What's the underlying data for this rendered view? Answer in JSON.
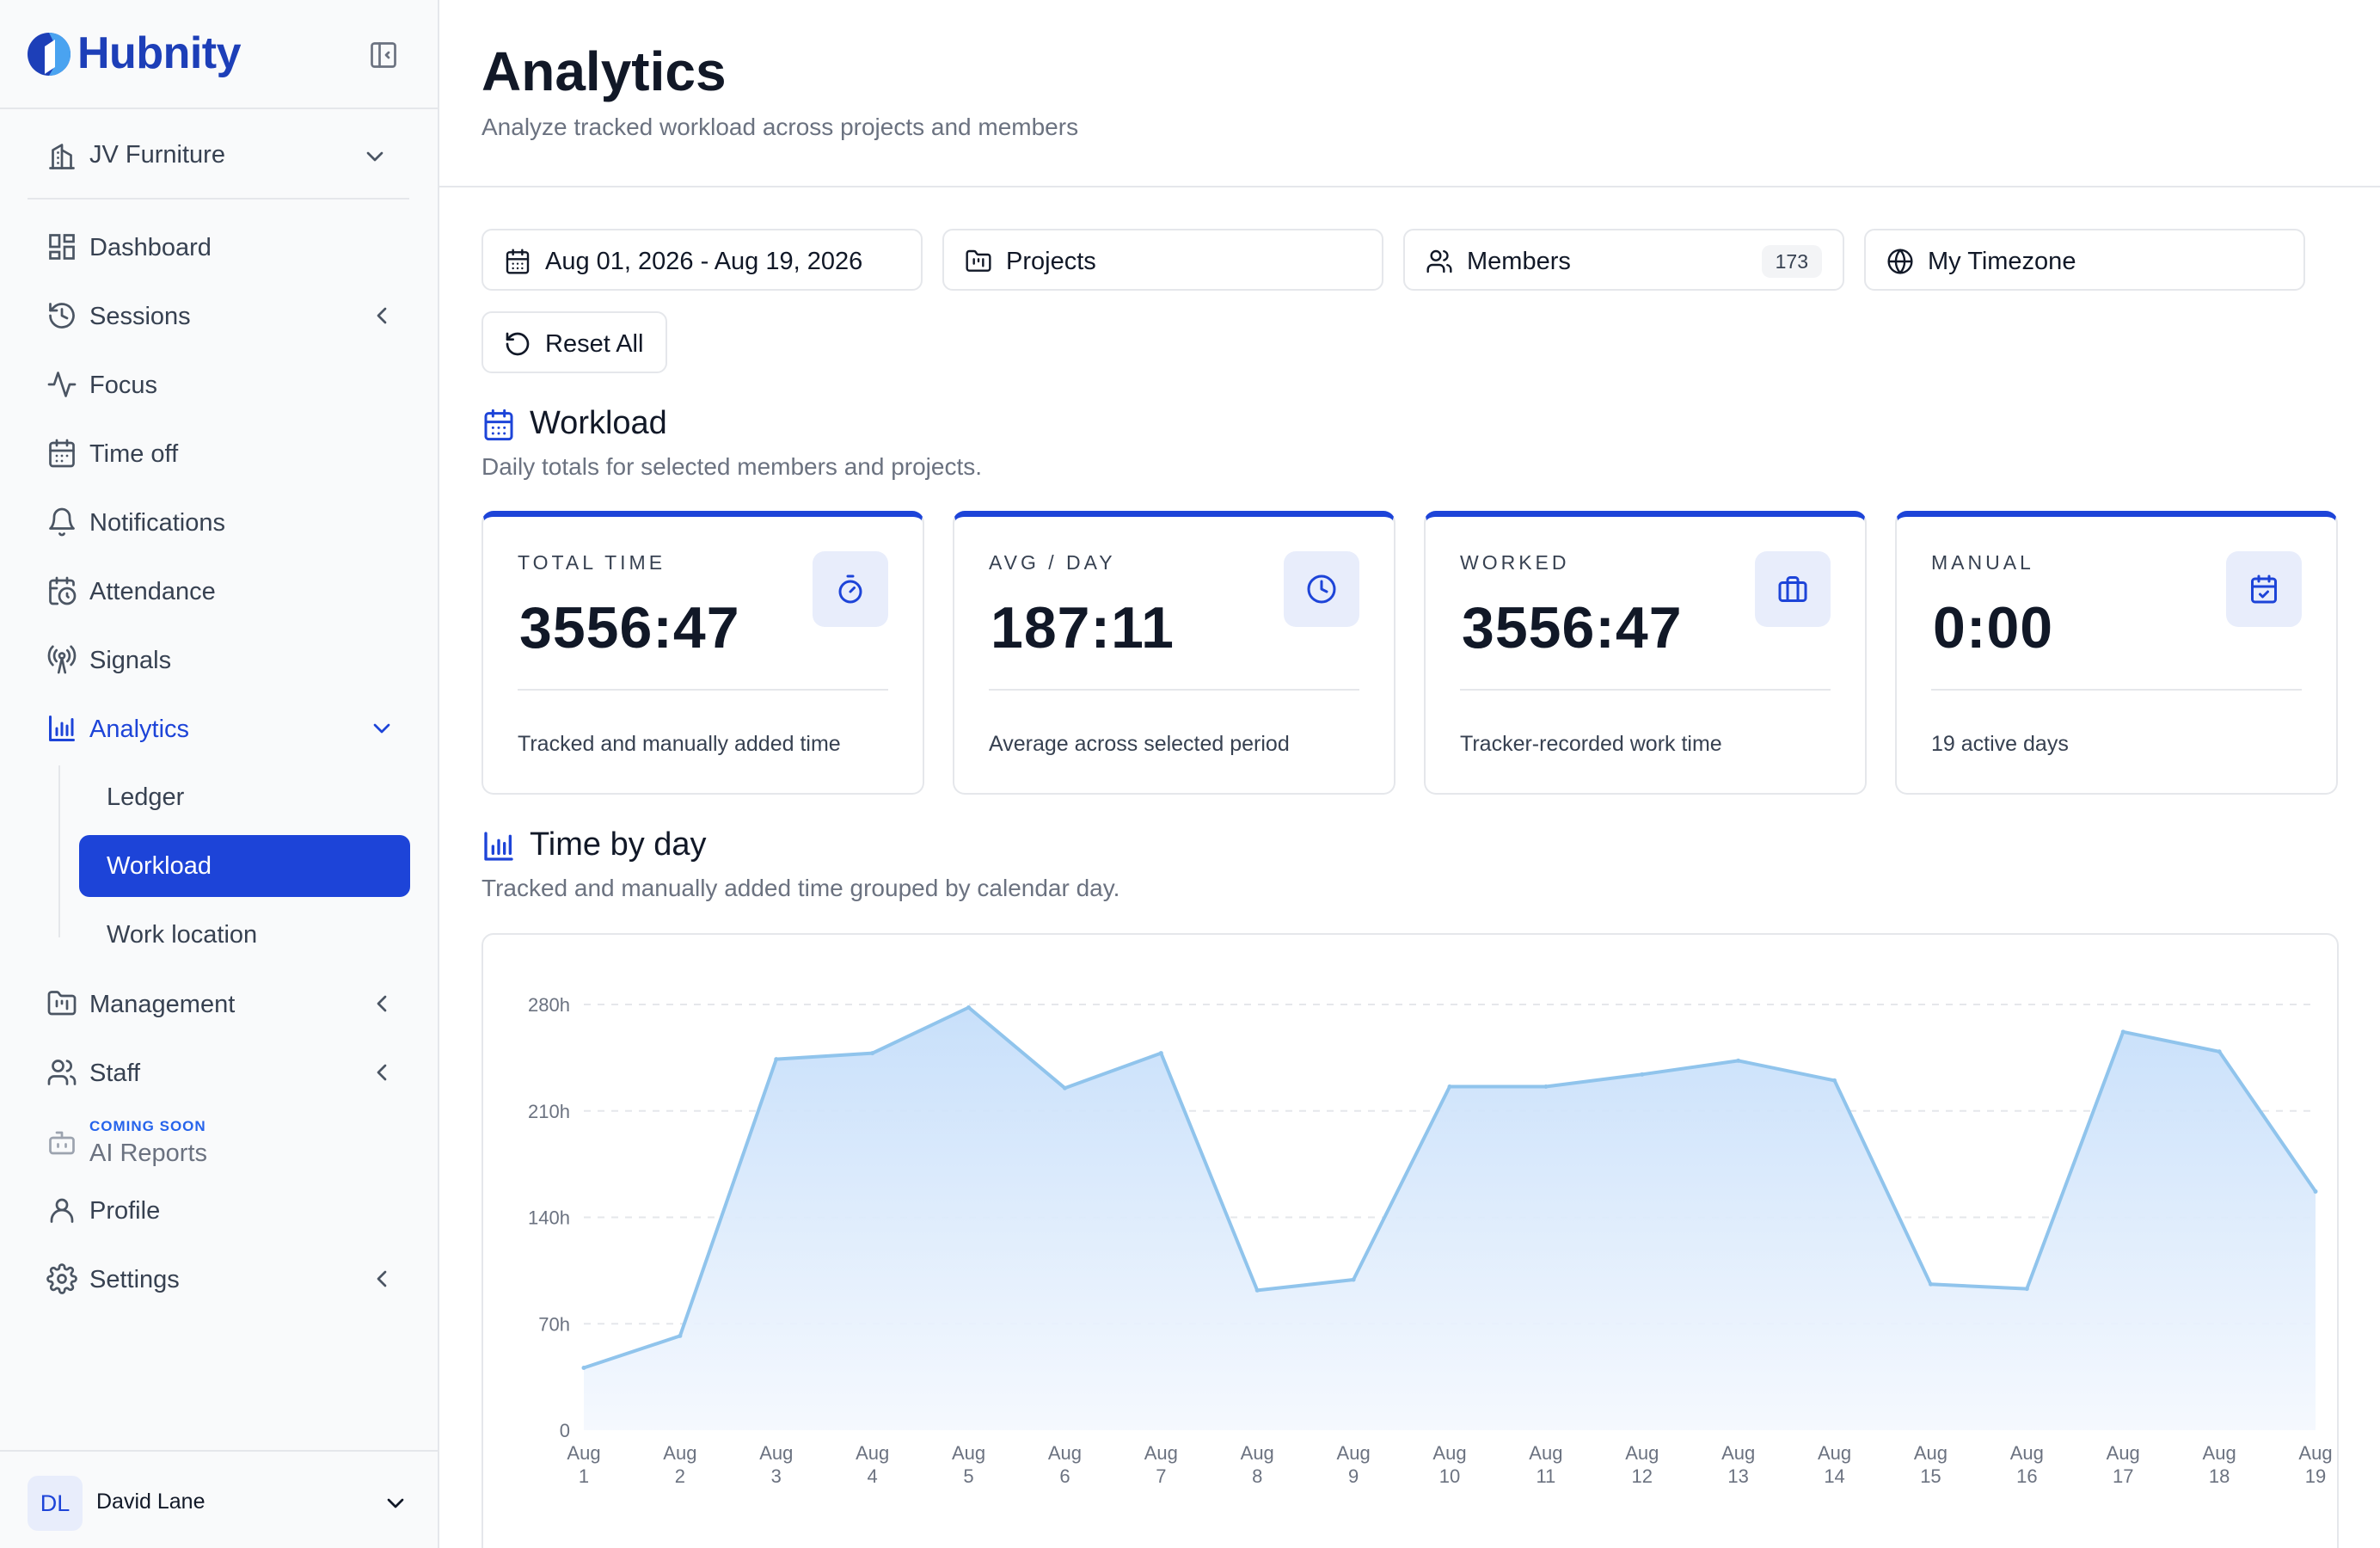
{
  "brand": {
    "name": "Hubnity"
  },
  "organization": {
    "name": "JV Furniture"
  },
  "nav": {
    "dashboard": "Dashboard",
    "sessions": "Sessions",
    "focus": "Focus",
    "time_off": "Time off",
    "notifications": "Notifications",
    "attendance": "Attendance",
    "signals": "Signals",
    "analytics": "Analytics",
    "analytics_sub": {
      "ledger": "Ledger",
      "workload": "Workload",
      "work_location": "Work location"
    },
    "management": "Management",
    "staff": "Staff",
    "ai_reports_tag": "COMING SOON",
    "ai_reports": "AI Reports",
    "profile": "Profile",
    "settings": "Settings"
  },
  "user": {
    "initials": "DL",
    "name": "David Lane"
  },
  "header": {
    "title": "Analytics",
    "subtitle": "Analyze tracked workload across projects and members"
  },
  "filters": {
    "date_range": "Aug 01, 2026 - Aug 19, 2026",
    "projects": "Projects",
    "members": "Members",
    "members_count": "173",
    "timezone": "My Timezone",
    "reset": "Reset All"
  },
  "workload": {
    "title": "Workload",
    "description": "Daily totals for selected members and projects.",
    "cards": [
      {
        "label": "TOTAL TIME",
        "value": "3556:47",
        "description": "Tracked and manually added time",
        "icon": "stopwatch-icon"
      },
      {
        "label": "AVG / DAY",
        "value": "187:11",
        "description": "Average across selected period",
        "icon": "clock-icon"
      },
      {
        "label": "WORKED",
        "value": "3556:47",
        "description": "Tracker-recorded work time",
        "icon": "briefcase-icon"
      },
      {
        "label": "MANUAL",
        "value": "0:00",
        "description": "19 active days",
        "icon": "calendar-check-icon"
      }
    ]
  },
  "time_by_day": {
    "title": "Time by day",
    "description": "Tracked and manually added time grouped by calendar day."
  },
  "colors": {
    "accent": "#1d44d8",
    "area_stroke": "#90c4ec",
    "area_fill_top": "#c5defa"
  },
  "chart_data": {
    "type": "area",
    "x": [
      "Aug 1",
      "Aug 2",
      "Aug 3",
      "Aug 4",
      "Aug 5",
      "Aug 6",
      "Aug 7",
      "Aug 8",
      "Aug 9",
      "Aug 10",
      "Aug 11",
      "Aug 12",
      "Aug 13",
      "Aug 14",
      "Aug 15",
      "Aug 16",
      "Aug 17",
      "Aug 18",
      "Aug 19"
    ],
    "x_ticks": [
      [
        "Aug",
        "1"
      ],
      [
        "Aug",
        "2"
      ],
      [
        "Aug",
        "3"
      ],
      [
        "Aug",
        "4"
      ],
      [
        "Aug",
        "5"
      ],
      [
        "Aug",
        "6"
      ],
      [
        "Aug",
        "7"
      ],
      [
        "Aug",
        "8"
      ],
      [
        "Aug",
        "9"
      ],
      [
        "Aug",
        "10"
      ],
      [
        "Aug",
        "11"
      ],
      [
        "Aug",
        "12"
      ],
      [
        "Aug",
        "13"
      ],
      [
        "Aug",
        "14"
      ],
      [
        "Aug",
        "15"
      ],
      [
        "Aug",
        "16"
      ],
      [
        "Aug",
        "17"
      ],
      [
        "Aug",
        "18"
      ],
      [
        "Aug",
        "19"
      ]
    ],
    "values": [
      41,
      62,
      244,
      248,
      278,
      225,
      248,
      92,
      99,
      226,
      226,
      234,
      243,
      230,
      96,
      93,
      262,
      249,
      157
    ],
    "ylim": [
      0,
      280
    ],
    "y_ticks": [
      0,
      70,
      140,
      210,
      280
    ],
    "y_tick_labels": [
      "0",
      "70h",
      "140h",
      "210h",
      "280h"
    ],
    "grid": true,
    "legend": "none"
  }
}
